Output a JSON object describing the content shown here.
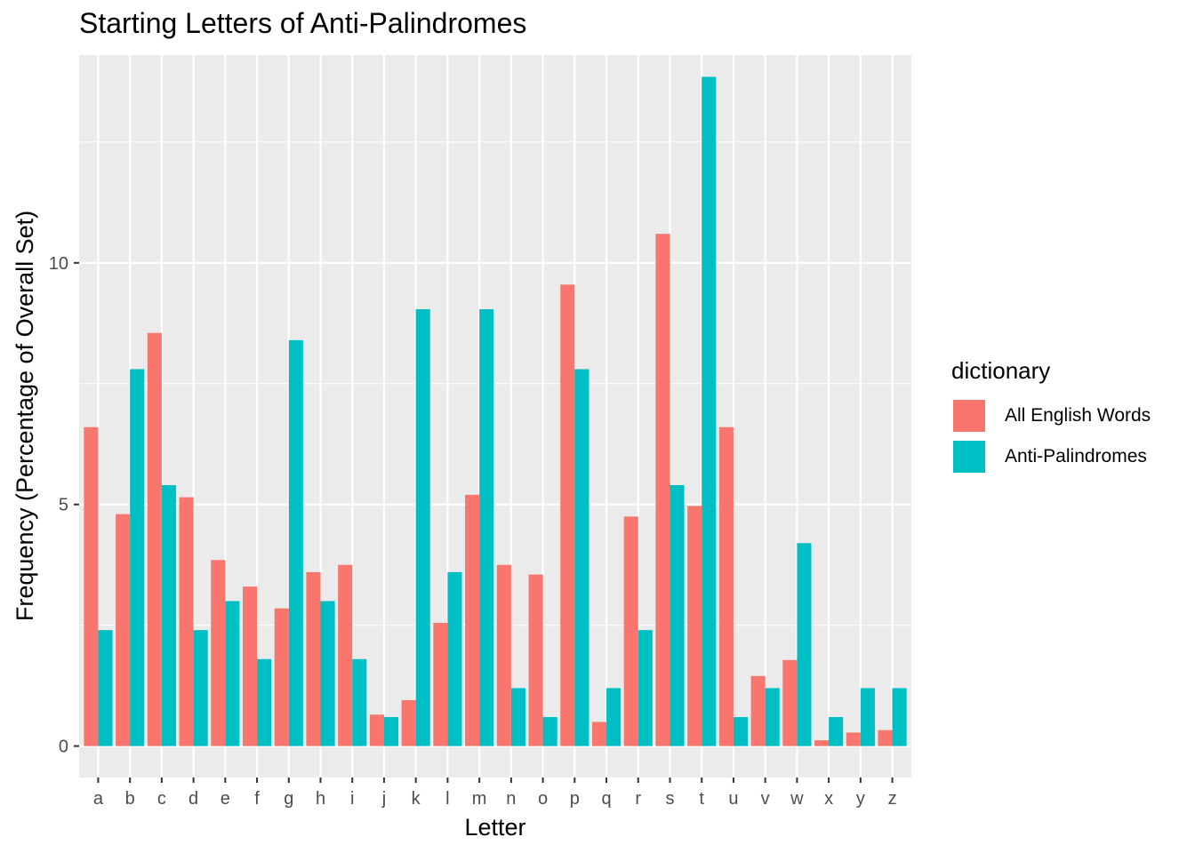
{
  "chart_data": {
    "type": "bar",
    "title": "Starting Letters of Anti-Palindromes",
    "xlabel": "Letter",
    "ylabel": "Frequency (Percentage of Overall Set)",
    "categories": [
      "a",
      "b",
      "c",
      "d",
      "e",
      "f",
      "g",
      "h",
      "i",
      "j",
      "k",
      "l",
      "m",
      "n",
      "o",
      "p",
      "q",
      "r",
      "s",
      "t",
      "u",
      "v",
      "w",
      "x",
      "y",
      "z"
    ],
    "series": [
      {
        "name": "All English Words",
        "color": "#F8766D",
        "values": [
          6.6,
          4.8,
          8.55,
          5.15,
          3.85,
          3.3,
          2.85,
          3.6,
          3.75,
          0.65,
          0.95,
          2.55,
          5.2,
          3.75,
          3.55,
          9.55,
          0.5,
          4.75,
          10.6,
          4.97,
          6.6,
          1.45,
          1.78,
          0.12,
          0.28,
          0.33
        ]
      },
      {
        "name": "Anti-Palindromes",
        "color": "#00BFC4",
        "values": [
          2.4,
          7.8,
          5.4,
          2.4,
          3.0,
          1.8,
          8.4,
          3.0,
          1.8,
          0.6,
          9.04,
          3.6,
          9.04,
          1.2,
          0.6,
          7.8,
          1.2,
          2.4,
          5.4,
          13.85,
          0.6,
          1.2,
          4.2,
          0.6,
          1.2,
          1.2
        ]
      }
    ],
    "ylim": [
      -0.65,
      14.3
    ],
    "yticks": [
      "0",
      "5",
      "10"
    ],
    "ytick_values": [
      0,
      5,
      10
    ],
    "grid": true,
    "legend": {
      "title": "dictionary",
      "position": "right"
    }
  }
}
